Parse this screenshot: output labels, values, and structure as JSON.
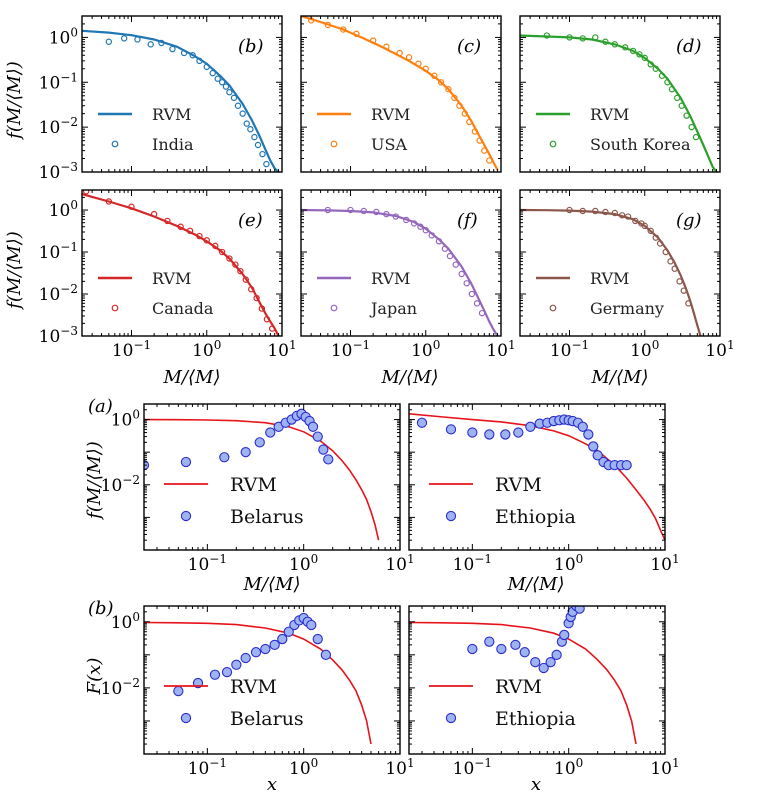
{
  "figure": {
    "colors": {
      "blue": "#1f77b4",
      "orange": "#ff7f0e",
      "green": "#2ca02c",
      "red": "#d62728",
      "purple": "#9467bd",
      "brown": "#8c564b",
      "rvm_red": "#e8131a",
      "marker_fill": "#9db3f2",
      "marker_edge": "#2c2ccc"
    },
    "tick_labels": {
      "y_top": [
        "10",
        "10",
        "10",
        "10"
      ],
      "y_top_exp": [
        "0",
        "−1",
        "−2",
        "−3"
      ],
      "y_bottom": [
        "10",
        "10"
      ],
      "y_bottom_exp": [
        "0",
        "−2"
      ],
      "x": [
        "10",
        "10",
        "10"
      ],
      "x_exp": [
        "−1",
        "0",
        "1"
      ]
    },
    "labels": {
      "y_top": "f(M/⟨M⟩)",
      "x_top": "M/⟨M⟩",
      "y_mid": "f(M/⟨M⟩)",
      "x_mid": "M/⟨M⟩",
      "y_bot": "F(x)",
      "x_bot": "x",
      "section_a": "(a)",
      "section_b": "(b)"
    }
  },
  "chart_data": [
    {
      "id": "b",
      "type": "scatter",
      "panel_label": "(b)",
      "color": "#1f77b4",
      "xlabel": "M/⟨M⟩",
      "ylabel": "f(M/⟨M⟩)",
      "xlim": [
        0.022,
        10
      ],
      "ylim": [
        0.001,
        3
      ],
      "series": [
        {
          "name": "RVM",
          "kind": "line",
          "x": [
            0.022,
            0.05,
            0.1,
            0.2,
            0.4,
            0.7,
            1,
            1.5,
            2,
            3,
            4,
            5,
            6,
            7,
            8,
            9
          ],
          "y": [
            1.4,
            1.28,
            1.12,
            0.9,
            0.62,
            0.38,
            0.26,
            0.14,
            0.085,
            0.033,
            0.014,
            0.0065,
            0.0032,
            0.0018,
            0.0012,
            0.001
          ]
        },
        {
          "name": "India",
          "kind": "points",
          "x": [
            0.05,
            0.08,
            0.12,
            0.18,
            0.25,
            0.35,
            0.5,
            0.65,
            0.8,
            1.0,
            1.2,
            1.4,
            1.6,
            1.8,
            2.0,
            2.3,
            2.6,
            3.0,
            3.4,
            3.8,
            4.3,
            4.8,
            5.5,
            6.2
          ],
          "y": [
            0.8,
            0.95,
            0.9,
            0.7,
            0.75,
            0.55,
            0.45,
            0.4,
            0.3,
            0.22,
            0.16,
            0.12,
            0.1,
            0.08,
            0.06,
            0.045,
            0.03,
            0.02,
            0.012,
            0.009,
            0.006,
            0.004,
            0.0025,
            0.0015
          ]
        }
      ]
    },
    {
      "id": "c",
      "type": "scatter",
      "panel_label": "(c)",
      "color": "#ff7f0e",
      "xlabel": "M/⟨M⟩",
      "ylabel": "f(M/⟨M⟩)",
      "xlim": [
        0.022,
        10
      ],
      "ylim": [
        0.001,
        3
      ],
      "series": [
        {
          "name": "RVM",
          "kind": "line",
          "x": [
            0.022,
            0.04,
            0.08,
            0.15,
            0.3,
            0.6,
            1,
            1.5,
            2,
            3,
            4,
            5,
            6,
            7,
            8,
            9
          ],
          "y": [
            3,
            2.2,
            1.5,
            0.95,
            0.55,
            0.3,
            0.18,
            0.11,
            0.07,
            0.03,
            0.014,
            0.007,
            0.004,
            0.0025,
            0.0016,
            0.0011
          ]
        },
        {
          "name": "USA",
          "kind": "points",
          "x": [
            0.03,
            0.05,
            0.08,
            0.12,
            0.2,
            0.3,
            0.45,
            0.6,
            0.8,
            1.0,
            1.3,
            1.6,
            2.0,
            2.4,
            2.8,
            3.3,
            3.8,
            4.5,
            5.2,
            6.0,
            7.0
          ],
          "y": [
            2.4,
            1.9,
            1.5,
            1.2,
            0.85,
            0.62,
            0.45,
            0.36,
            0.26,
            0.2,
            0.14,
            0.1,
            0.07,
            0.045,
            0.03,
            0.02,
            0.013,
            0.008,
            0.005,
            0.003,
            0.0018
          ]
        }
      ]
    },
    {
      "id": "d",
      "type": "scatter",
      "panel_label": "(d)",
      "color": "#2ca02c",
      "xlabel": "M/⟨M⟩",
      "ylabel": "f(M/⟨M⟩)",
      "xlim": [
        0.022,
        10
      ],
      "ylim": [
        0.001,
        3
      ],
      "series": [
        {
          "name": "RVM",
          "kind": "line",
          "x": [
            0.022,
            0.05,
            0.1,
            0.2,
            0.4,
            0.7,
            1,
            1.5,
            2,
            3,
            4,
            5,
            6,
            7,
            8,
            9
          ],
          "y": [
            1.1,
            1.05,
            1.0,
            0.9,
            0.7,
            0.5,
            0.35,
            0.2,
            0.12,
            0.045,
            0.018,
            0.008,
            0.004,
            0.0022,
            0.0013,
            0.001
          ]
        },
        {
          "name": "South Korea",
          "kind": "points",
          "x": [
            0.05,
            0.1,
            0.15,
            0.22,
            0.3,
            0.4,
            0.55,
            0.7,
            0.85,
            1.0,
            1.2,
            1.4,
            1.7,
            2.0,
            2.3,
            2.7,
            3.1,
            3.6,
            4.2,
            4.8
          ],
          "y": [
            1.1,
            1.0,
            0.95,
            1.0,
            0.8,
            0.7,
            0.6,
            0.5,
            0.42,
            0.35,
            0.25,
            0.2,
            0.14,
            0.1,
            0.07,
            0.045,
            0.03,
            0.018,
            0.01,
            0.006
          ]
        }
      ]
    },
    {
      "id": "e",
      "type": "scatter",
      "panel_label": "(e)",
      "color": "#d62728",
      "xlabel": "M/⟨M⟩",
      "ylabel": "f(M/⟨M⟩)",
      "xlim": [
        0.022,
        10
      ],
      "ylim": [
        0.001,
        3
      ],
      "series": [
        {
          "name": "RVM",
          "kind": "line",
          "x": [
            0.022,
            0.05,
            0.1,
            0.2,
            0.4,
            0.7,
            1,
            1.5,
            2,
            3,
            4,
            5,
            6,
            7,
            8,
            9
          ],
          "y": [
            2.4,
            1.6,
            1.1,
            0.7,
            0.42,
            0.26,
            0.18,
            0.11,
            0.07,
            0.03,
            0.014,
            0.0065,
            0.0035,
            0.0022,
            0.0015,
            0.001
          ]
        },
        {
          "name": "Canada",
          "kind": "points",
          "x": [
            0.025,
            0.05,
            0.1,
            0.2,
            0.3,
            0.45,
            0.6,
            0.8,
            1.0,
            1.3,
            1.6,
            2.0,
            2.4,
            2.8,
            3.3,
            3.9,
            4.6,
            5.4,
            6.3,
            7.4
          ],
          "y": [
            2.8,
            1.6,
            1.2,
            0.8,
            0.55,
            0.4,
            0.32,
            0.24,
            0.19,
            0.14,
            0.1,
            0.07,
            0.05,
            0.035,
            0.022,
            0.013,
            0.008,
            0.0045,
            0.0025,
            0.0015
          ]
        }
      ]
    },
    {
      "id": "f",
      "type": "scatter",
      "panel_label": "(f)",
      "color": "#9467bd",
      "xlabel": "M/⟨M⟩",
      "ylabel": "f(M/⟨M⟩)",
      "xlim": [
        0.022,
        10
      ],
      "ylim": [
        0.001,
        3
      ],
      "series": [
        {
          "name": "RVM",
          "kind": "line",
          "x": [
            0.022,
            0.05,
            0.1,
            0.2,
            0.4,
            0.7,
            1,
            1.5,
            2,
            3,
            4,
            5,
            6,
            7,
            8,
            9
          ],
          "y": [
            1.0,
            0.98,
            0.95,
            0.88,
            0.72,
            0.52,
            0.36,
            0.2,
            0.12,
            0.045,
            0.018,
            0.008,
            0.004,
            0.0022,
            0.0014,
            0.001
          ]
        },
        {
          "name": "Japan",
          "kind": "points",
          "x": [
            0.05,
            0.1,
            0.15,
            0.22,
            0.3,
            0.4,
            0.55,
            0.7,
            0.85,
            1.0,
            1.2,
            1.5,
            1.8,
            2.1,
            2.5,
            3.0,
            3.5,
            4.1,
            4.8,
            5.6
          ],
          "y": [
            1.0,
            1.0,
            0.95,
            0.9,
            0.8,
            0.7,
            0.58,
            0.48,
            0.4,
            0.33,
            0.25,
            0.18,
            0.12,
            0.08,
            0.05,
            0.03,
            0.018,
            0.01,
            0.006,
            0.0035
          ]
        }
      ]
    },
    {
      "id": "g",
      "type": "scatter",
      "panel_label": "(g)",
      "color": "#8c564b",
      "xlabel": "M/⟨M⟩",
      "ylabel": "f(M/⟨M⟩)",
      "xlim": [
        0.022,
        10
      ],
      "ylim": [
        0.001,
        3
      ],
      "series": [
        {
          "name": "RVM",
          "kind": "line",
          "x": [
            0.022,
            0.05,
            0.1,
            0.2,
            0.4,
            0.7,
            1,
            1.5,
            2,
            2.5,
            3,
            3.5,
            4,
            4.5,
            5,
            5.5
          ],
          "y": [
            1.0,
            0.99,
            0.97,
            0.92,
            0.8,
            0.6,
            0.42,
            0.22,
            0.11,
            0.055,
            0.028,
            0.014,
            0.007,
            0.0035,
            0.0018,
            0.001
          ]
        },
        {
          "name": "Germany",
          "kind": "points",
          "x": [
            0.1,
            0.15,
            0.22,
            0.3,
            0.4,
            0.5,
            0.6,
            0.75,
            0.9,
            1.0,
            1.2,
            1.4,
            1.6,
            1.9,
            2.2,
            2.5,
            2.9,
            3.3,
            3.8
          ],
          "y": [
            1.0,
            0.95,
            0.95,
            0.9,
            0.85,
            0.75,
            0.7,
            0.55,
            0.48,
            0.42,
            0.32,
            0.22,
            0.16,
            0.1,
            0.06,
            0.04,
            0.02,
            0.012,
            0.006
          ]
        }
      ]
    },
    {
      "id": "a-belarus",
      "type": "scatter",
      "panel_label": "(a)",
      "xlabel": "M/⟨M⟩",
      "ylabel": "f(M/⟨M⟩)",
      "xlim": [
        0.022,
        10
      ],
      "ylim": [
        0.0001,
        3
      ],
      "series": [
        {
          "name": "RVM",
          "kind": "line",
          "x": [
            0.022,
            0.05,
            0.1,
            0.2,
            0.4,
            0.7,
            1,
            1.5,
            2,
            2.5,
            3,
            3.5,
            4,
            4.5,
            5,
            5.5,
            6
          ],
          "y": [
            1.0,
            0.99,
            0.97,
            0.92,
            0.8,
            0.6,
            0.42,
            0.22,
            0.11,
            0.055,
            0.028,
            0.014,
            0.007,
            0.0035,
            0.0015,
            0.0006,
            0.0002
          ]
        },
        {
          "name": "Belarus",
          "kind": "points",
          "x": [
            0.022,
            0.06,
            0.15,
            0.25,
            0.35,
            0.45,
            0.55,
            0.65,
            0.75,
            0.85,
            0.95,
            1.05,
            1.15,
            1.25,
            1.4,
            1.6,
            1.8
          ],
          "y": [
            0.04,
            0.05,
            0.07,
            0.1,
            0.2,
            0.4,
            0.6,
            0.8,
            1.0,
            1.3,
            1.5,
            1.2,
            0.9,
            0.6,
            0.3,
            0.12,
            0.06
          ]
        }
      ]
    },
    {
      "id": "a-ethiopia",
      "type": "scatter",
      "xlabel": "M/⟨M⟩",
      "ylabel": "",
      "xlim": [
        0.022,
        10
      ],
      "ylim": [
        0.0001,
        3
      ],
      "series": [
        {
          "name": "RVM",
          "kind": "line",
          "x": [
            0.022,
            0.05,
            0.1,
            0.2,
            0.4,
            0.7,
            1,
            1.5,
            2,
            3,
            4,
            5,
            6,
            7,
            8,
            9,
            10
          ],
          "y": [
            1.5,
            1.2,
            1.0,
            0.85,
            0.65,
            0.45,
            0.32,
            0.18,
            0.11,
            0.04,
            0.016,
            0.007,
            0.0035,
            0.0018,
            0.0009,
            0.0004,
            0.0002
          ]
        },
        {
          "name": "Ethiopia",
          "kind": "points",
          "x": [
            0.03,
            0.06,
            0.1,
            0.15,
            0.22,
            0.3,
            0.4,
            0.5,
            0.6,
            0.7,
            0.8,
            0.9,
            1.0,
            1.1,
            1.25,
            1.4,
            1.6,
            1.8,
            2.0,
            2.3,
            2.6,
            3.0,
            3.5,
            4.0
          ],
          "y": [
            0.8,
            0.5,
            0.4,
            0.35,
            0.35,
            0.4,
            0.6,
            0.75,
            0.8,
            0.9,
            0.95,
            1.0,
            0.95,
            0.9,
            0.8,
            0.6,
            0.35,
            0.15,
            0.08,
            0.05,
            0.04,
            0.04,
            0.04,
            0.04
          ]
        }
      ]
    },
    {
      "id": "b-belarus",
      "type": "scatter",
      "panel_label": "(b)",
      "xlabel": "x",
      "ylabel": "F(x)",
      "xlim": [
        0.022,
        10
      ],
      "ylim": [
        0.0001,
        3
      ],
      "series": [
        {
          "name": "RVM",
          "kind": "line",
          "x": [
            0.022,
            0.05,
            0.1,
            0.2,
            0.4,
            0.7,
            1,
            1.5,
            2,
            2.5,
            3,
            3.5,
            4,
            4.5,
            5
          ],
          "y": [
            0.95,
            0.93,
            0.9,
            0.82,
            0.65,
            0.45,
            0.3,
            0.15,
            0.07,
            0.035,
            0.017,
            0.008,
            0.003,
            0.001,
            0.0002
          ]
        },
        {
          "name": "Belarus",
          "kind": "points",
          "x": [
            0.05,
            0.08,
            0.12,
            0.16,
            0.2,
            0.25,
            0.32,
            0.4,
            0.5,
            0.6,
            0.7,
            0.8,
            0.9,
            1.0,
            1.1,
            1.2,
            1.4,
            1.7
          ],
          "y": [
            0.008,
            0.014,
            0.025,
            0.03,
            0.05,
            0.08,
            0.12,
            0.15,
            0.2,
            0.3,
            0.5,
            0.8,
            1.1,
            1.3,
            1.0,
            0.8,
            0.3,
            0.1
          ]
        }
      ]
    },
    {
      "id": "b-ethiopia",
      "type": "scatter",
      "xlabel": "x",
      "ylabel": "",
      "xlim": [
        0.022,
        10
      ],
      "ylim": [
        0.0001,
        3
      ],
      "series": [
        {
          "name": "RVM",
          "kind": "line",
          "x": [
            0.022,
            0.05,
            0.1,
            0.2,
            0.4,
            0.7,
            1,
            1.5,
            2,
            2.5,
            3,
            3.5,
            4,
            4.5,
            5
          ],
          "y": [
            0.95,
            0.93,
            0.9,
            0.82,
            0.65,
            0.45,
            0.3,
            0.15,
            0.07,
            0.035,
            0.017,
            0.008,
            0.003,
            0.001,
            0.0002
          ]
        },
        {
          "name": "Ethiopia",
          "kind": "points",
          "x": [
            0.1,
            0.15,
            0.2,
            0.28,
            0.35,
            0.45,
            0.55,
            0.65,
            0.75,
            0.85,
            0.9,
            1.0,
            1.05,
            1.1,
            1.2,
            1.3
          ],
          "y": [
            0.15,
            0.25,
            0.15,
            0.2,
            0.12,
            0.06,
            0.04,
            0.06,
            0.1,
            0.25,
            0.4,
            0.9,
            1.4,
            2.0,
            3.0,
            2.5
          ]
        }
      ]
    }
  ]
}
